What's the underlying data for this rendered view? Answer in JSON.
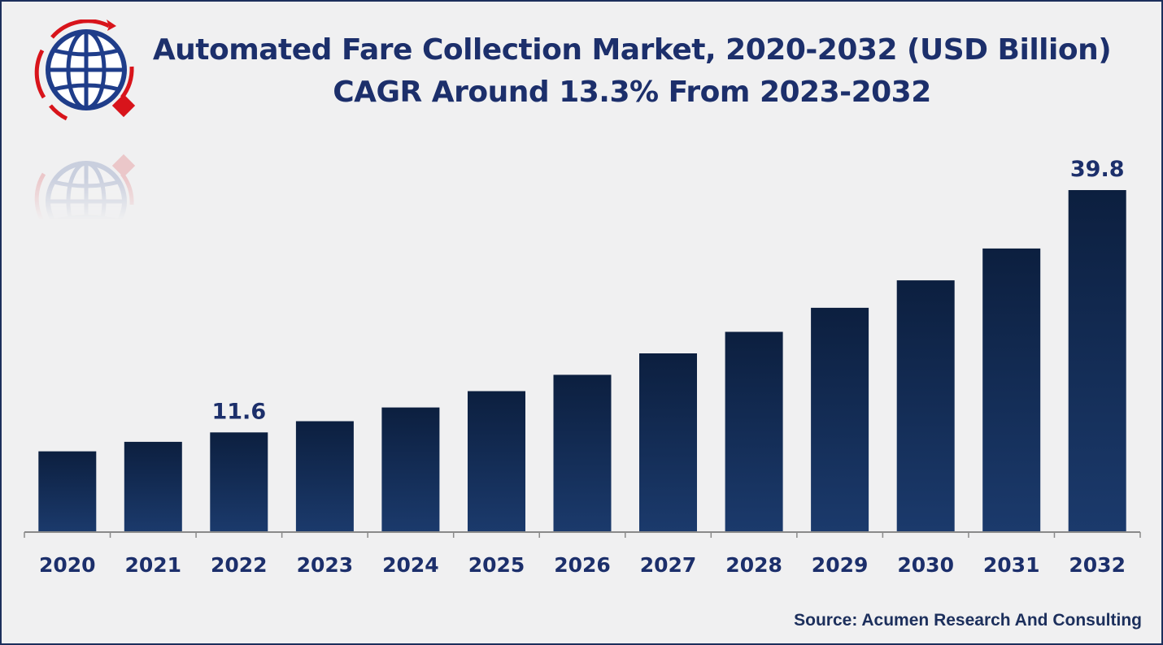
{
  "colors": {
    "bar_top": "#0c1f3f",
    "bar_bottom": "#1b3a6c",
    "text": "#1c2f6b",
    "axis": "#8a8a8a",
    "logo_blue": "#1f3d8a",
    "logo_red": "#d8141b"
  },
  "logo": {
    "icon": "globe-icon"
  },
  "chart_data": {
    "type": "bar",
    "title": "Automated Fare Collection Market, 2020-2032 (USD Billion)",
    "subtitle": "CAGR Around 13.3% From 2023-2032",
    "categories": [
      "2020",
      "2021",
      "2022",
      "2023",
      "2024",
      "2025",
      "2026",
      "2027",
      "2028",
      "2029",
      "2030",
      "2031",
      "2032"
    ],
    "values": [
      9.4,
      10.5,
      11.6,
      12.9,
      14.5,
      16.4,
      18.3,
      20.8,
      23.3,
      26.1,
      29.3,
      33.0,
      39.8
    ],
    "data_labels": [
      {
        "category": "2022",
        "text": "11.6"
      },
      {
        "category": "2032",
        "text": "39.8"
      }
    ],
    "xlabel": "",
    "ylabel": "",
    "ylim": [
      0,
      47
    ],
    "grid": false,
    "legend": "none"
  },
  "source": "Source: Acumen Research And Consulting"
}
